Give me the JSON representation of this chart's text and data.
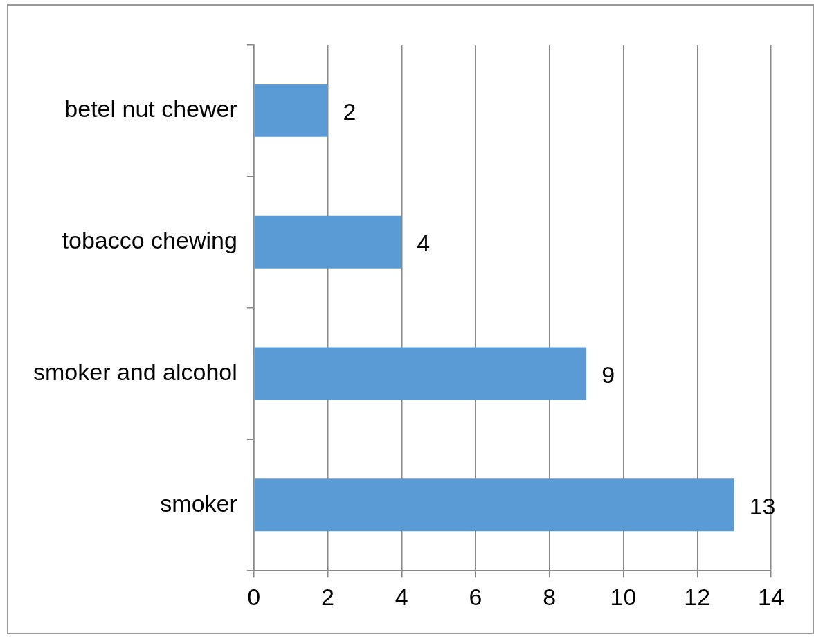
{
  "chart_data": {
    "type": "bar",
    "orientation": "horizontal",
    "categories": [
      "betel nut chewer",
      "tobacco chewing",
      "smoker and alcohol",
      "smoker"
    ],
    "values": [
      2,
      4,
      9,
      13
    ],
    "color": "#5b9bd5",
    "xlim": [
      0,
      14
    ],
    "xticks": [
      0,
      2,
      4,
      6,
      8,
      10,
      12,
      14
    ],
    "grid": "x",
    "data_labels": true
  }
}
